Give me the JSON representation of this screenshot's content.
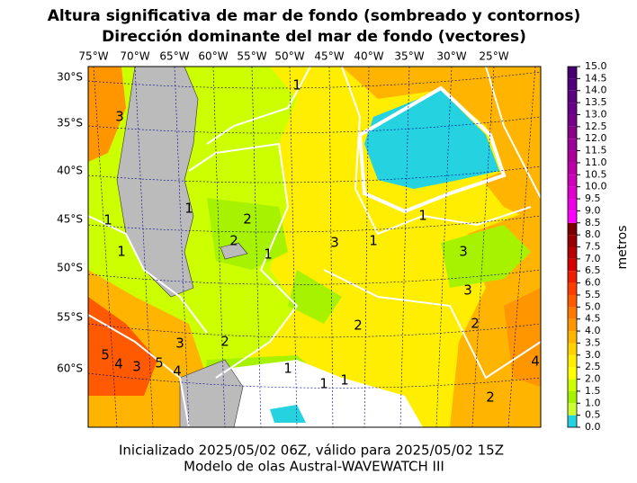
{
  "header": {
    "title": "Altura significativa de mar de fondo (sombreado y contornos)",
    "subtitle": "Dirección dominante del mar de fondo (vectores)"
  },
  "map": {
    "lon_labels": [
      "75°W",
      "70°W",
      "65°W",
      "60°W",
      "55°W",
      "50°W",
      "45°W",
      "40°W",
      "35°W",
      "30°W",
      "25°W"
    ],
    "lat_labels": [
      "30°S",
      "35°S",
      "40°S",
      "45°S",
      "50°S",
      "55°S",
      "60°S"
    ],
    "contour_labels": [
      "1",
      "1",
      "1",
      "2",
      "2",
      "3",
      "3",
      "3",
      "1",
      "1",
      "2",
      "2",
      "3",
      "4",
      "5",
      "5",
      "4",
      "3",
      "2",
      "1",
      "1",
      "1",
      "2",
      "4",
      "3",
      "1",
      "1"
    ]
  },
  "colorbar": {
    "label": "metros",
    "ticks": [
      {
        "value": 0,
        "label": "0.0"
      },
      {
        "value": 0.5,
        "label": "0.5"
      },
      {
        "value": 1,
        "label": "1.0"
      },
      {
        "value": 1.5,
        "label": "1.5"
      },
      {
        "value": 2,
        "label": "2.0"
      },
      {
        "value": 2.5,
        "label": "2.5"
      },
      {
        "value": 3,
        "label": "3.0"
      },
      {
        "value": 3.5,
        "label": "3.5"
      },
      {
        "value": 4,
        "label": "4.0"
      },
      {
        "value": 4.5,
        "label": "4.5"
      },
      {
        "value": 5,
        "label": "5.0"
      },
      {
        "value": 5.5,
        "label": "5.5"
      },
      {
        "value": 6,
        "label": "6.0"
      },
      {
        "value": 6.5,
        "label": "6.5"
      },
      {
        "value": 7,
        "label": "7.0"
      },
      {
        "value": 7.5,
        "label": "7.5"
      },
      {
        "value": 8,
        "label": "8.0"
      },
      {
        "value": 8.5,
        "label": "8.5"
      },
      {
        "value": 9,
        "label": "9.0"
      },
      {
        "value": 9.5,
        "label": "9.5"
      },
      {
        "value": 10,
        "label": "10.0"
      },
      {
        "value": 10.5,
        "label": "10.5"
      },
      {
        "value": 11,
        "label": "11.0"
      },
      {
        "value": 11.5,
        "label": "11.5"
      },
      {
        "value": 12,
        "label": "12.0"
      },
      {
        "value": 12.5,
        "label": "12.5"
      },
      {
        "value": 13,
        "label": "13.0"
      },
      {
        "value": 13.5,
        "label": "13.5"
      },
      {
        "value": 14,
        "label": "14.0"
      },
      {
        "value": 14.5,
        "label": "14.5"
      },
      {
        "value": 15,
        "label": "15.0"
      }
    ],
    "colors": [
      "#25d3e0",
      "#ccff33",
      "#a6f200",
      "#ccff00",
      "#ffff00",
      "#ffee00",
      "#ffd200",
      "#ffb400",
      "#ff9600",
      "#ff7800",
      "#ff5a00",
      "#ff3c00",
      "#ee1e00",
      "#d40000",
      "#b40000",
      "#960000",
      "#7a0000",
      "#ff00ff",
      "#ee00e6",
      "#dd00cc",
      "#cc00b8",
      "#bb00aa",
      "#aa0099",
      "#990099",
      "#880088",
      "#770088",
      "#660088",
      "#5a0080",
      "#500078",
      "#460070"
    ]
  },
  "footer": {
    "line1": "Inicializado 2025/05/02 06Z, válido para 2025/05/02 15Z",
    "line2": "Modelo de olas Austral-WAVEWATCH III"
  }
}
